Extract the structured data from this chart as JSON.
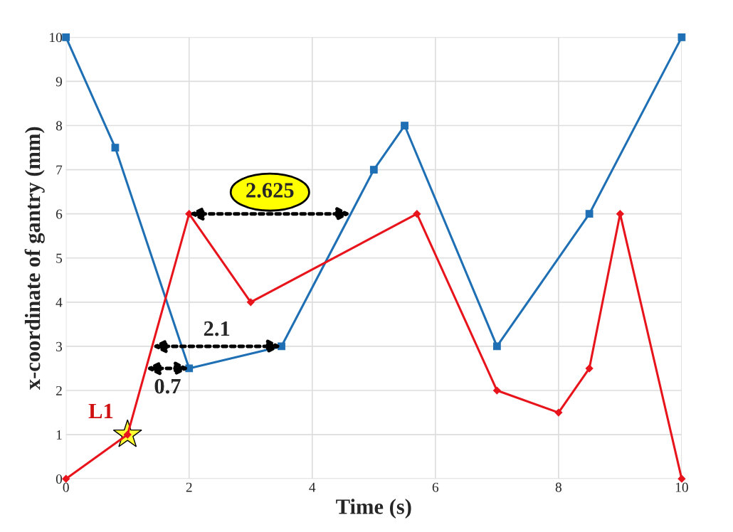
{
  "chart_data": {
    "type": "line",
    "xlabel": "Time (s)",
    "ylabel": "x-coordinate of gantry (mm)",
    "xlim": [
      0,
      10
    ],
    "ylim": [
      0,
      10
    ],
    "xticks": [
      0,
      2,
      4,
      6,
      8,
      10
    ],
    "yticks": [
      0,
      1,
      2,
      3,
      4,
      5,
      6,
      7,
      8,
      9,
      10
    ],
    "grid": true,
    "series": [
      {
        "color": "#1f6fb4",
        "marker": "square",
        "x": [
          0,
          0.8,
          2,
          3.5,
          5,
          5.5,
          7,
          8.5,
          10
        ],
        "values": [
          10,
          7.5,
          2.5,
          3,
          7,
          8,
          3,
          6,
          10
        ]
      },
      {
        "color": "#e8141c",
        "marker": "diamond",
        "x": [
          0,
          1,
          2,
          3,
          5.7,
          7,
          8,
          8.5,
          9,
          10
        ],
        "values": [
          0,
          1,
          6,
          4,
          6,
          2,
          1.5,
          2.5,
          6,
          0
        ]
      }
    ],
    "annotations": [
      {
        "text": "2.625",
        "x": 2,
        "y": 6
      },
      {
        "text": "2.1",
        "x": 1.4,
        "y": 3
      },
      {
        "text": "0.7",
        "x": 1.3,
        "y": 2.5
      },
      {
        "text": "L1",
        "x": 1,
        "y": 1
      }
    ]
  }
}
